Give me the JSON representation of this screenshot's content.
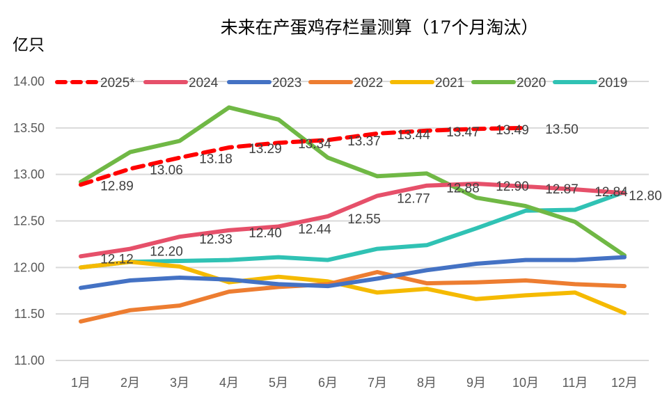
{
  "chart_data": {
    "type": "line",
    "title": "未来在产蛋鸡存栏量测算（17个月淘汰）",
    "ylabel": "亿只",
    "xlabel": "",
    "ylim": [
      11.0,
      14.0
    ],
    "yticks": [
      "14.00",
      "13.50",
      "13.00",
      "12.50",
      "12.00",
      "11.50",
      "11.00"
    ],
    "ytick_values": [
      14.0,
      13.5,
      13.0,
      12.5,
      12.0,
      11.5,
      11.0
    ],
    "categories": [
      "1月",
      "2月",
      "3月",
      "4月",
      "5月",
      "6月",
      "7月",
      "8月",
      "9月",
      "10月",
      "11月",
      "12月"
    ],
    "grid": true,
    "legend_position": "top",
    "series": [
      {
        "name": "2025*",
        "color": "#FF0000",
        "dashed": true,
        "values": [
          12.89,
          13.06,
          13.18,
          13.29,
          13.34,
          13.37,
          13.44,
          13.47,
          13.49,
          13.5
        ],
        "labels": [
          "12.89",
          "13.06",
          "13.18",
          "13.29",
          "13.34",
          "13.37",
          "13.44",
          "13.47",
          "13.49",
          "13.50"
        ]
      },
      {
        "name": "2024",
        "color": "#E6506A",
        "dashed": false,
        "values": [
          12.12,
          12.2,
          12.33,
          12.4,
          12.44,
          12.55,
          12.77,
          12.88,
          12.9,
          12.87,
          12.84,
          12.8
        ],
        "labels": [
          "12.12",
          "12.20",
          "12.33",
          "12.40",
          "12.44",
          "12.55",
          "12.77",
          "12.88",
          "12.90",
          "12.87",
          "12.84",
          "12.80"
        ]
      },
      {
        "name": "2023",
        "color": "#4472C4",
        "dashed": false,
        "values": [
          11.78,
          11.86,
          11.89,
          11.87,
          11.82,
          11.8,
          11.88,
          11.97,
          12.04,
          12.08,
          12.08,
          12.11
        ]
      },
      {
        "name": "2022",
        "color": "#ED7D31",
        "dashed": false,
        "values": [
          11.42,
          11.54,
          11.59,
          11.74,
          11.79,
          11.82,
          11.95,
          11.83,
          11.84,
          11.86,
          11.82,
          11.8
        ]
      },
      {
        "name": "2021",
        "color": "#F5BA00",
        "dashed": false,
        "values": [
          12.0,
          12.06,
          12.01,
          11.84,
          11.9,
          11.85,
          11.73,
          11.77,
          11.66,
          11.7,
          11.73,
          11.51
        ]
      },
      {
        "name": "2020",
        "color": "#70B845",
        "dashed": false,
        "values": [
          12.92,
          13.24,
          13.36,
          13.72,
          13.59,
          13.18,
          12.98,
          13.01,
          12.75,
          12.66,
          12.49,
          12.13
        ]
      },
      {
        "name": "2019",
        "color": "#30C2B4",
        "dashed": false,
        "values": [
          12.0,
          12.06,
          12.07,
          12.08,
          12.11,
          12.08,
          12.2,
          12.24,
          12.42,
          12.61,
          12.62,
          12.81
        ]
      }
    ]
  }
}
